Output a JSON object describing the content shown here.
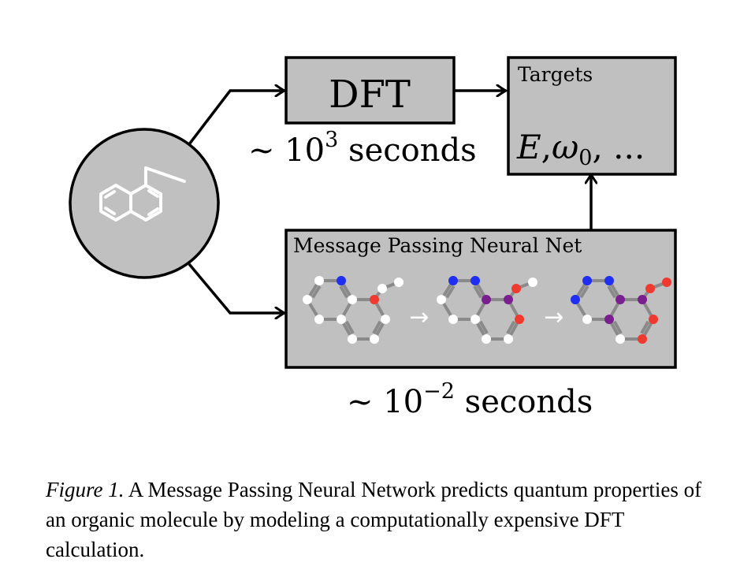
{
  "diagram": {
    "dft_label": "DFT",
    "dft_time": {
      "prefix": "~ 10",
      "exponent": "3",
      "suffix": " seconds"
    },
    "targets_title": "Targets",
    "targets_formula": {
      "e": "E",
      "comma": ",",
      "omega": "ω",
      "omega_sub": "0",
      "rest": ", ..."
    },
    "mpnn_title": "Message Passing Neural Net",
    "mpnn_time": {
      "prefix": "~ 10",
      "exponent": "−2",
      "suffix": " seconds"
    },
    "step_arrow": "→",
    "colors": {
      "box_fill": "#c0c0c0",
      "stroke": "#000000",
      "bond": "#8a8a8a",
      "node_white": "#ffffff",
      "node_blue": "#1f2ef0",
      "node_red": "#f03a30",
      "node_purple": "#7a1f8e"
    }
  },
  "caption": {
    "figure_label": "Figure 1.",
    "text": " A Message Passing Neural Network predicts quantum properties of an organic molecule by modeling a computationally expensive DFT calculation."
  }
}
